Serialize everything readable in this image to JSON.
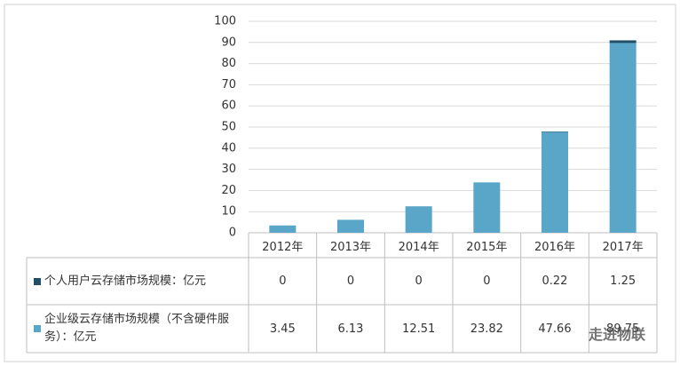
{
  "chart_data": {
    "type": "bar",
    "stacked": true,
    "categories": [
      "2012年",
      "2013年",
      "2014年",
      "2015年",
      "2016年",
      "2017年"
    ],
    "series": [
      {
        "name": "企业级云存储市场规模（不含硬件服务）：亿元",
        "color": "#5aa6c9",
        "values": [
          3.45,
          6.13,
          12.51,
          23.82,
          47.66,
          89.75
        ]
      },
      {
        "name": "个人用户云存储市场规模：亿元",
        "color": "#1f4f66",
        "values": [
          0,
          0,
          0,
          0,
          0.22,
          1.25
        ]
      }
    ],
    "ylim": [
      0,
      100
    ],
    "yticks": [
      0,
      10,
      20,
      30,
      40,
      50,
      60,
      70,
      80,
      90,
      100
    ],
    "grid": true
  },
  "watermark": "走进物联"
}
